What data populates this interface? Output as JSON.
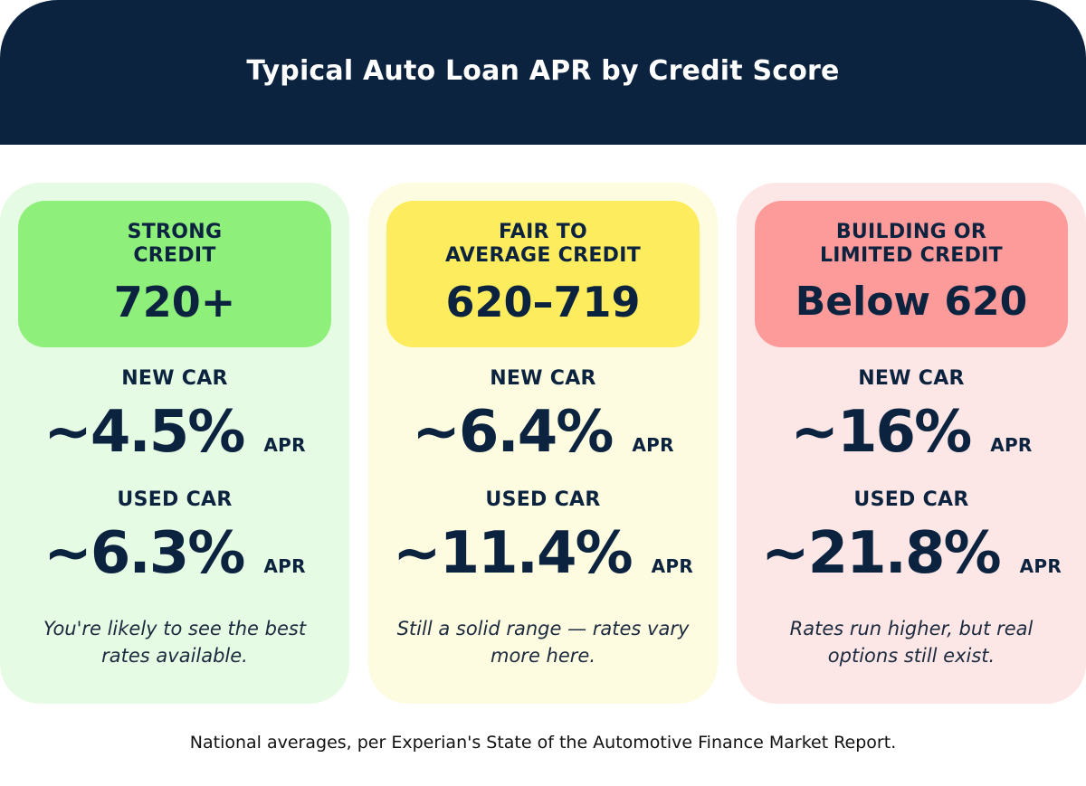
{
  "header": {
    "title": "Typical Auto Loan APR by Credit Score"
  },
  "cards": [
    {
      "tier_label": "STRONG\nCREDIT",
      "score_range": "720+",
      "new_label": "NEW CAR",
      "new_rate": "~4.5%",
      "used_label": "USED CAR",
      "used_rate": "~6.3%",
      "unit": "APR",
      "note": "You're likely to see the best rates available.",
      "accent": "#8fef7b",
      "background": "#e6fbe3"
    },
    {
      "tier_label": "FAIR TO\nAVERAGE CREDIT",
      "score_range": "620–719",
      "new_label": "NEW CAR",
      "new_rate": "~6.4%",
      "used_label": "USED CAR",
      "used_rate": "~11.4%",
      "unit": "APR",
      "note": "Still a solid range — rates vary more here.",
      "accent": "#fdec5e",
      "background": "#fefce0"
    },
    {
      "tier_label": "BUILDING OR\nLIMITED CREDIT",
      "score_range": "Below 620",
      "new_label": "NEW CAR",
      "new_rate": "~16%",
      "used_label": "USED CAR",
      "used_rate": "~21.8%",
      "unit": "APR",
      "note": "Rates run higher, but real options still exist.",
      "accent": "#fd9a9a",
      "background": "#fde6e6"
    }
  ],
  "footer": {
    "source": "National averages, per Experian's State of the Automotive Finance Market Report."
  },
  "colors": {
    "navy": "#0c2340",
    "white": "#ffffff"
  }
}
